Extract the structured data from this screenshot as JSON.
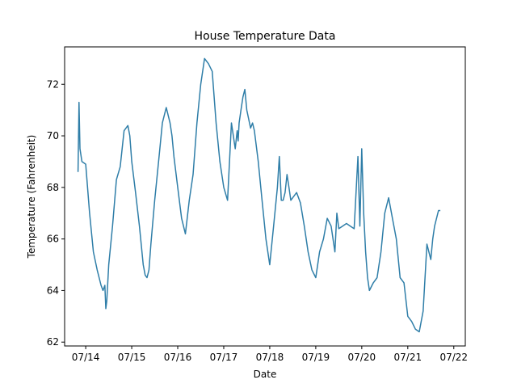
{
  "chart_data": {
    "type": "line",
    "title": "House Temperature Data",
    "xlabel": "Date",
    "ylabel": "Temperature (Fahrenheit)",
    "x_ticks": [
      "07/14",
      "07/15",
      "07/16",
      "07/17",
      "07/18",
      "07/19",
      "07/20",
      "07/21",
      "07/22"
    ],
    "y_ticks": [
      "62",
      "64",
      "66",
      "68",
      "70",
      "72"
    ],
    "xlim": [
      "07/13 13:00",
      "07/22 06:00"
    ],
    "ylim": [
      61.85,
      73.45
    ],
    "grid": false,
    "legend": "none",
    "series": [
      {
        "color": "#2f7ea8",
        "x": [
          "07/13 20:00",
          "07/13 20:30",
          "07/13 21:00",
          "07/13 22:00",
          "07/14 00:00",
          "07/14 02:00",
          "07/14 04:00",
          "07/14 06:00",
          "07/14 08:00",
          "07/14 09:00",
          "07/14 10:00",
          "07/14 10:30",
          "07/14 11:00",
          "07/14 12:00",
          "07/14 14:00",
          "07/14 16:00",
          "07/14 18:00",
          "07/14 20:00",
          "07/14 22:00",
          "07/14 23:00",
          "07/15 00:00",
          "07/15 02:00",
          "07/15 04:00",
          "07/15 06:00",
          "07/15 07:00",
          "07/15 08:00",
          "07/15 09:00",
          "07/15 10:00",
          "07/15 12:00",
          "07/15 14:00",
          "07/15 16:00",
          "07/15 18:00",
          "07/15 20:00",
          "07/15 21:00",
          "07/15 22:00",
          "07/16 00:00",
          "07/16 02:00",
          "07/16 04:00",
          "07/16 06:00",
          "07/16 08:00",
          "07/16 09:00",
          "07/16 10:00",
          "07/16 12:00",
          "07/16 14:00",
          "07/16 16:00",
          "07/16 18:00",
          "07/16 19:00",
          "07/16 20:00",
          "07/16 22:00",
          "07/17 00:00",
          "07/17 02:00",
          "07/17 04:00",
          "07/17 06:00",
          "07/17 07:00",
          "07/17 07:30",
          "07/17 08:00",
          "07/17 09:00",
          "07/17 10:00",
          "07/17 11:00",
          "07/17 12:00",
          "07/17 14:00",
          "07/17 15:00",
          "07/17 16:00",
          "07/17 18:00",
          "07/17 20:00",
          "07/17 22:00",
          "07/18 00:00",
          "07/18 02:00",
          "07/18 04:00",
          "07/18 05:00",
          "07/18 06:00",
          "07/18 07:00",
          "07/18 08:00",
          "07/18 09:00",
          "07/18 10:00",
          "07/18 11:00",
          "07/18 12:00",
          "07/18 14:00",
          "07/18 16:00",
          "07/18 18:00",
          "07/18 20:00",
          "07/18 22:00",
          "07/19 00:00",
          "07/19 02:00",
          "07/19 04:00",
          "07/19 06:00",
          "07/19 08:00",
          "07/19 10:00",
          "07/19 11:00",
          "07/19 12:00",
          "07/19 14:00",
          "07/19 16:00",
          "07/19 18:00",
          "07/19 20:00",
          "07/19 22:00",
          "07/19 23:00",
          "07/20 00:00",
          "07/20 01:00",
          "07/20 02:00",
          "07/20 03:00",
          "07/20 04:00",
          "07/20 06:00",
          "07/20 08:00",
          "07/20 10:00",
          "07/20 12:00",
          "07/20 14:00",
          "07/20 16:00",
          "07/20 18:00",
          "07/20 20:00",
          "07/20 22:00",
          "07/21 00:00",
          "07/21 02:00",
          "07/21 04:00",
          "07/21 06:00",
          "07/21 08:00",
          "07/21 10:00",
          "07/21 12:00",
          "07/21 13:00",
          "07/21 14:00",
          "07/21 16:00",
          "07/21 17:00"
        ],
        "values": [
          68.6,
          71.3,
          69.5,
          69.0,
          68.9,
          67.0,
          65.5,
          64.8,
          64.2,
          64.0,
          64.2,
          63.3,
          63.6,
          65.0,
          66.5,
          68.3,
          68.8,
          70.2,
          70.4,
          70.0,
          69.0,
          67.8,
          66.5,
          65.0,
          64.6,
          64.5,
          64.8,
          65.8,
          67.5,
          69.0,
          70.5,
          71.1,
          70.5,
          70.0,
          69.2,
          68.0,
          66.8,
          66.2,
          67.5,
          68.5,
          69.5,
          70.5,
          72.0,
          73.0,
          72.8,
          72.5,
          71.5,
          70.5,
          69.0,
          68.0,
          67.5,
          70.5,
          69.5,
          70.2,
          69.8,
          70.5,
          71.0,
          71.5,
          71.8,
          71.0,
          70.3,
          70.5,
          70.2,
          69.0,
          67.5,
          66.0,
          65.0,
          66.5,
          68.0,
          69.2,
          67.5,
          67.5,
          67.8,
          68.5,
          68.0,
          67.5,
          67.6,
          67.8,
          67.4,
          66.5,
          65.5,
          64.8,
          64.5,
          65.5,
          66.0,
          66.8,
          66.5,
          65.5,
          67.0,
          66.4,
          66.5,
          66.6,
          66.5,
          66.4,
          69.2,
          66.5,
          69.5,
          67.0,
          65.5,
          64.5,
          64.0,
          64.3,
          64.5,
          65.5,
          67.0,
          67.6,
          66.8,
          66.0,
          64.5,
          64.3,
          63.0,
          62.8,
          62.5,
          62.4,
          63.2,
          65.8,
          65.2,
          66.0,
          66.5,
          67.1,
          67.1
        ]
      }
    ]
  }
}
